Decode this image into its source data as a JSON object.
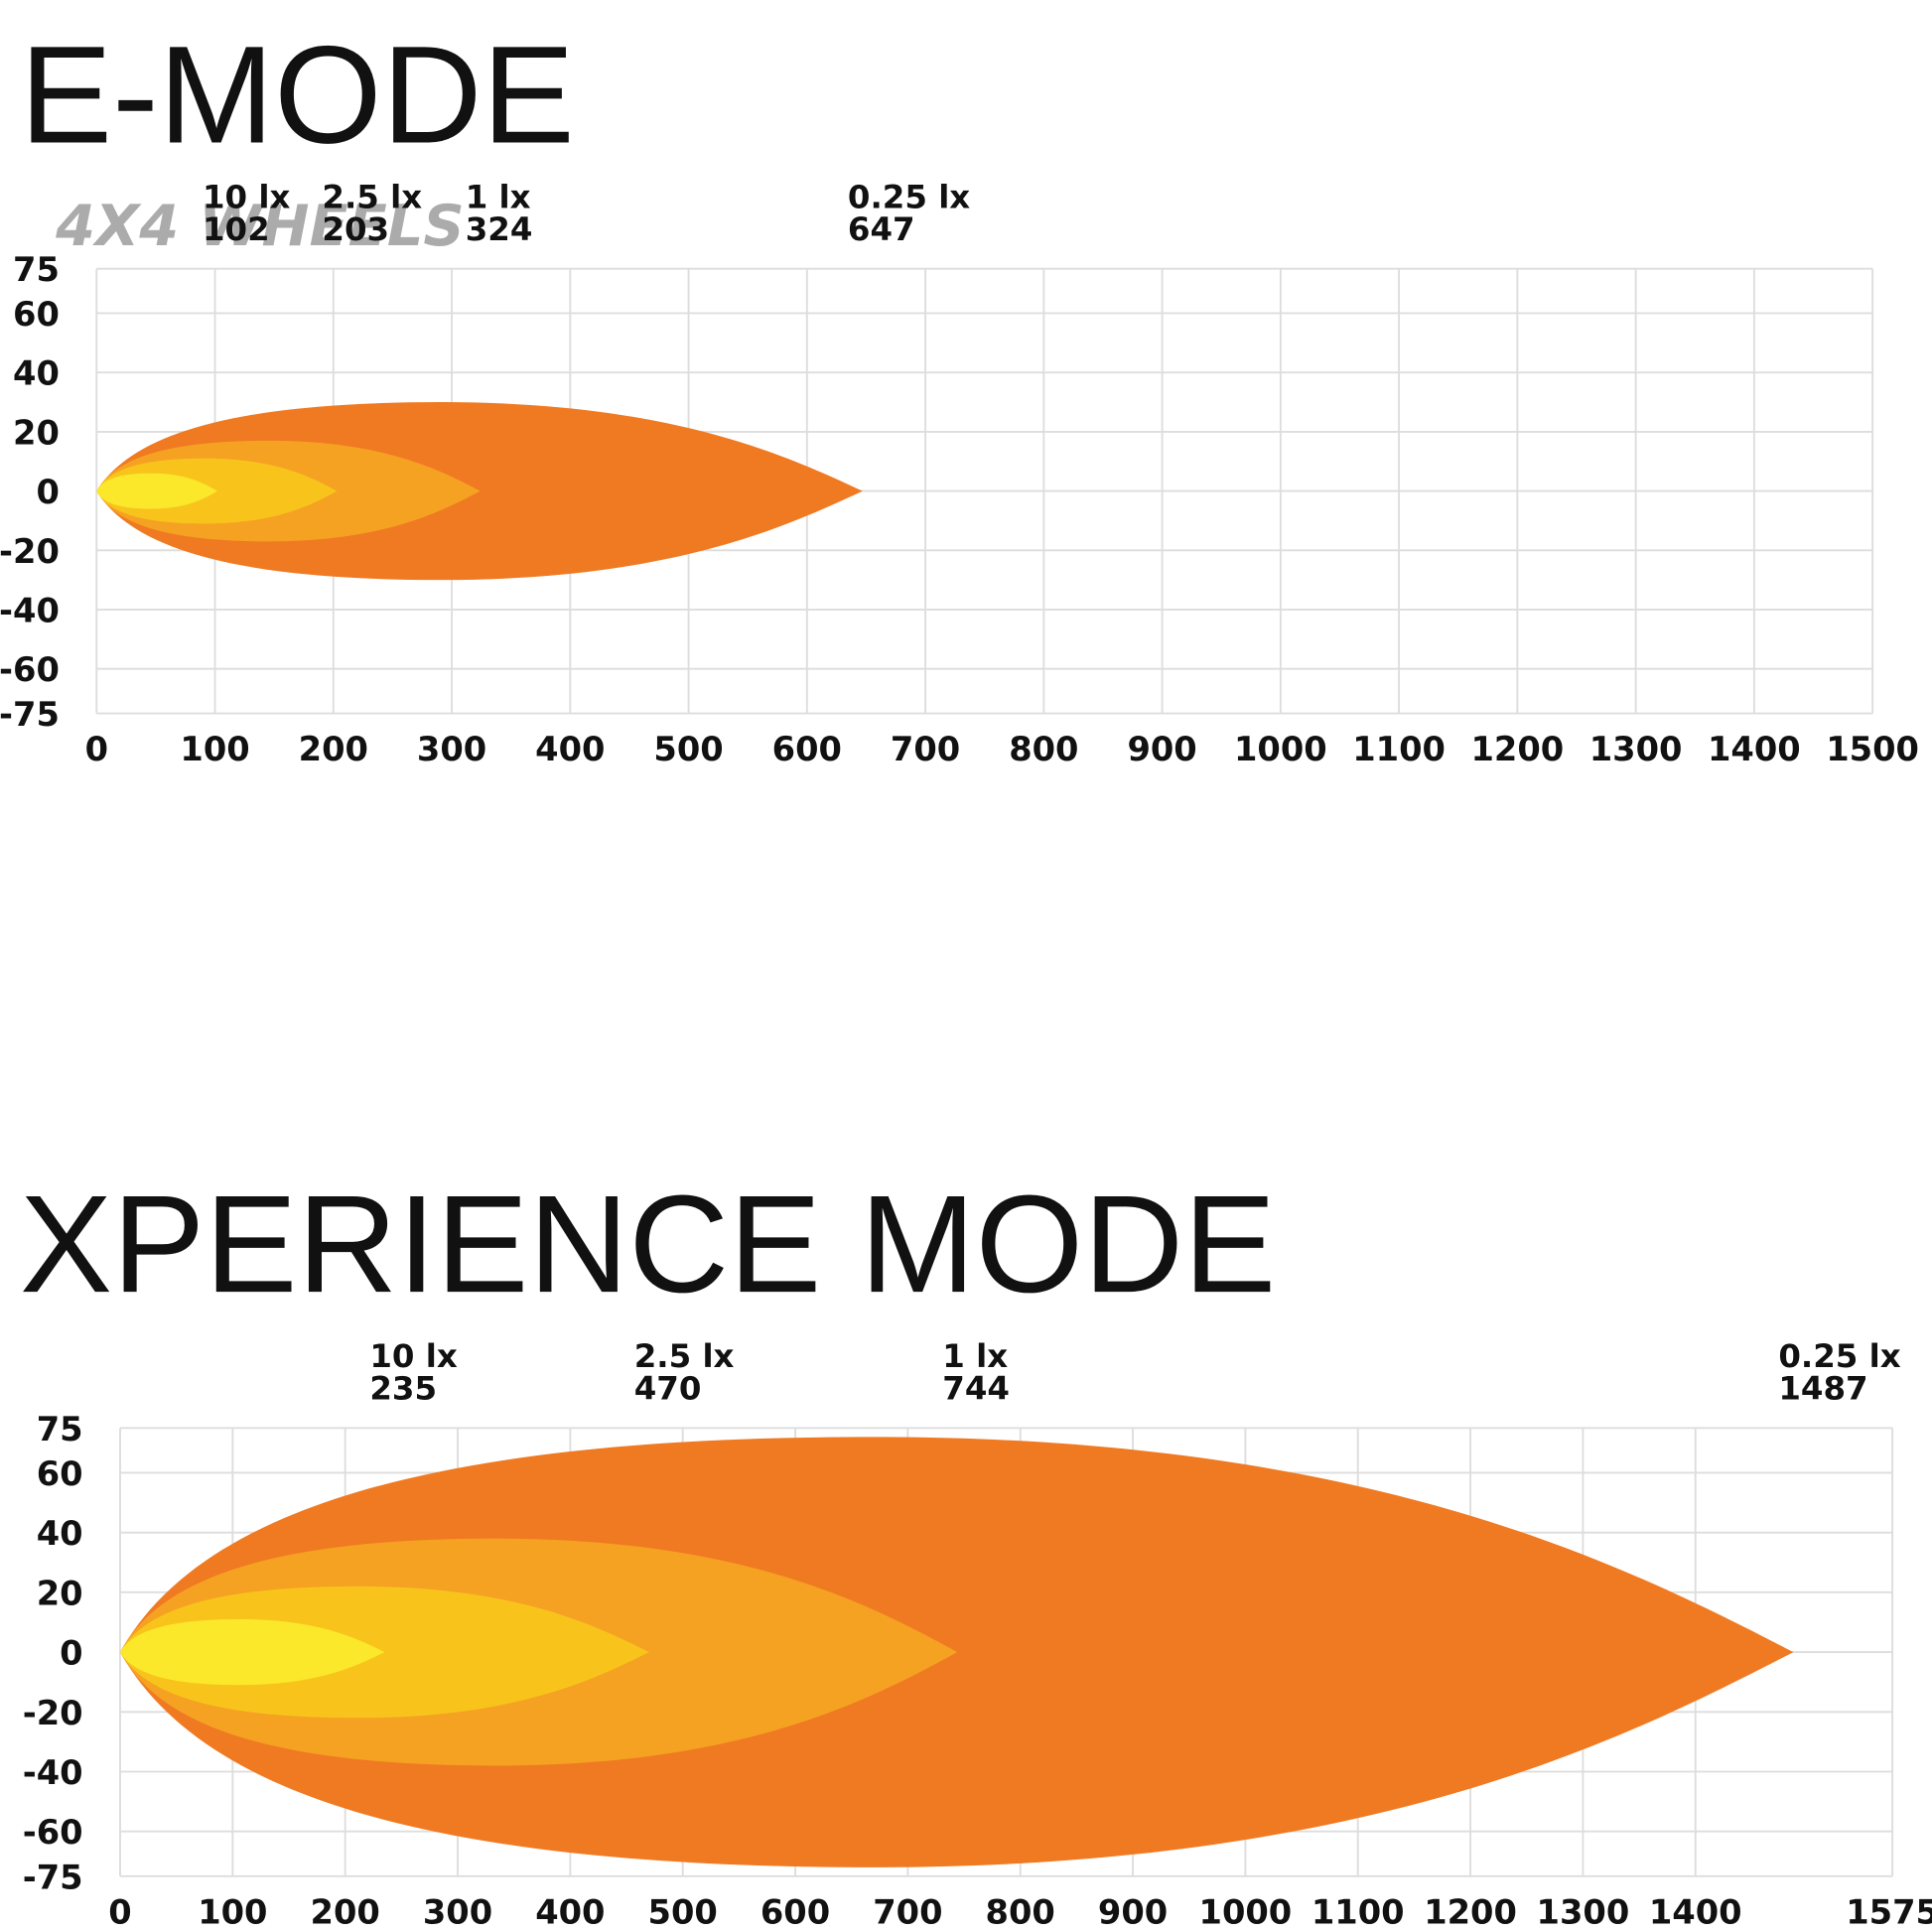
{
  "chart_data": [
    {
      "type": "beam",
      "title": "E-MODE",
      "watermark": "4X4 WHEELS",
      "zones": [
        {
          "name": "10 lx",
          "distance": 102,
          "width": 6,
          "color": "#fbe82a"
        },
        {
          "name": "2.5 lx",
          "distance": 203,
          "width": 11,
          "color": "#f8c41c"
        },
        {
          "name": "1 lx",
          "distance": 324,
          "width": 17,
          "color": "#f5a223"
        },
        {
          "name": "0.25 lx",
          "distance": 647,
          "width": 30,
          "color": "#f07a22"
        }
      ],
      "xlim": [
        0,
        1500
      ],
      "xticks": [
        0,
        100,
        200,
        300,
        400,
        500,
        600,
        700,
        800,
        900,
        1000,
        1100,
        1200,
        1300,
        1400,
        1500
      ],
      "ylim": [
        -75,
        75
      ],
      "yticks": [
        75,
        60,
        40,
        20,
        0,
        -20,
        -40,
        -60,
        -75
      ],
      "grid": true
    },
    {
      "type": "beam",
      "title": "XPERIENCE MODE",
      "zones": [
        {
          "name": "10 lx",
          "distance": 235,
          "width": 11,
          "color": "#fbe82a"
        },
        {
          "name": "2.5 lx",
          "distance": 470,
          "width": 22,
          "color": "#f8c41c"
        },
        {
          "name": "1 lx",
          "distance": 744,
          "width": 38,
          "color": "#f5a223"
        },
        {
          "name": "0.25 lx",
          "distance": 1487,
          "width": 72,
          "color": "#f07a22"
        }
      ],
      "xlim": [
        0,
        1575
      ],
      "xticks": [
        0,
        100,
        200,
        300,
        400,
        500,
        600,
        700,
        800,
        900,
        1000,
        1100,
        1200,
        1300,
        1400,
        1575
      ],
      "ylim": [
        -75,
        75
      ],
      "yticks": [
        75,
        60,
        40,
        20,
        0,
        -20,
        -40,
        -60,
        -75
      ],
      "grid": true
    }
  ]
}
